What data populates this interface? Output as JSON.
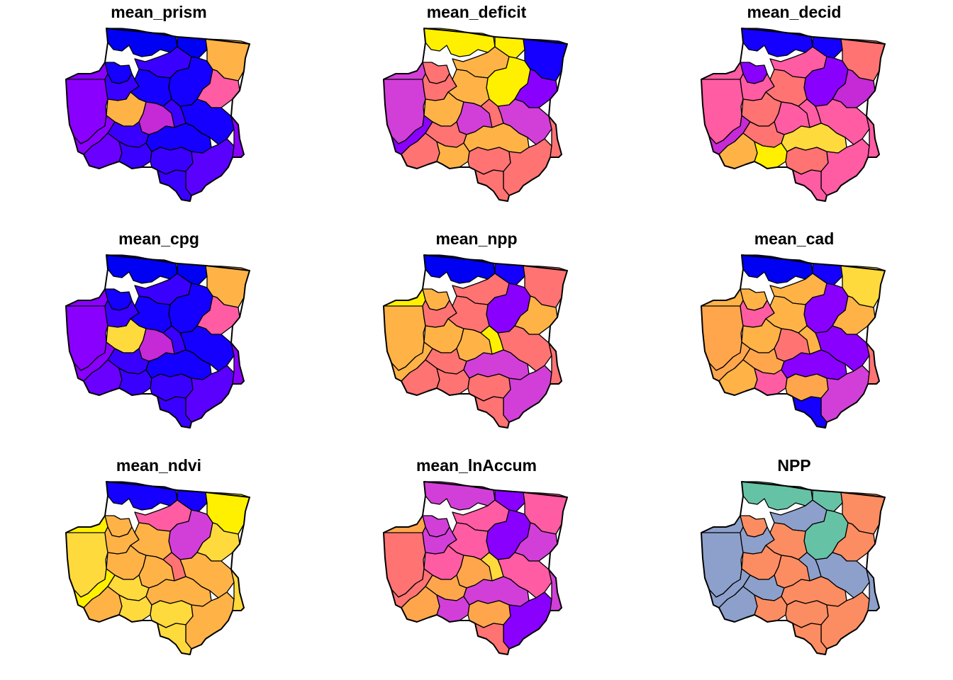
{
  "figure": {
    "panels": [
      {
        "title": "mean_prism",
        "colors": [
          "#8A00FF",
          "#1500FF",
          "#0000F2",
          "#3A00FF",
          "#8A00FF",
          "#0000F2",
          "#3A00FF",
          "#1500FF",
          "#1500FF",
          "#FFB347",
          "#FF5CA3",
          "#1500FF",
          "#FFB347",
          "#8A00FF",
          "#3A00FF",
          "#C629D6",
          "#3A00FF",
          "#6A00FF",
          "#3A00FF",
          "#1500FF",
          "#3A00FF",
          "#5A00FF",
          "#3A00FF",
          "#8A00FF"
        ]
      },
      {
        "title": "mean_deficit",
        "colors": [
          "#D23FD8",
          "#FF7373",
          "#FFF000",
          "#FFB347",
          "#D23FD8",
          "#FFF000",
          "#FF7373",
          "#FFF000",
          "#FFB347",
          "#1500FF",
          "#8A00FF",
          "#D23FD8",
          "#FFB347",
          "#8A00FF",
          "#FF7373",
          "#D23FD8",
          "#FF7373",
          "#FF7373",
          "#FFB347",
          "#FFB347",
          "#FF7373",
          "#FF7373",
          "#FF7373",
          "#FF7373"
        ]
      },
      {
        "title": "mean_decid",
        "colors": [
          "#FF5CA3",
          "#8A00FF",
          "#1500FF",
          "#FF5CA3",
          "#FF5CA3",
          "#1500FF",
          "#FF5CA3",
          "#8A00FF",
          "#FF7373",
          "#FF7373",
          "#C629D6",
          "#FF5CA3",
          "#FF7373",
          "#C629D6",
          "#FF5CA3",
          "#FF5CA3",
          "#FF7373",
          "#FFB347",
          "#FFF000",
          "#FFDA3D",
          "#FF7373",
          "#FF5CA3",
          "#FF5CA3",
          "#FF5CA3"
        ]
      },
      {
        "title": "mean_cpg",
        "colors": [
          "#8A00FF",
          "#1500FF",
          "#0000F2",
          "#3A00FF",
          "#8A00FF",
          "#0000F2",
          "#3A00FF",
          "#1500FF",
          "#1500FF",
          "#FFB347",
          "#FF5CA3",
          "#1500FF",
          "#FFDA3D",
          "#8A00FF",
          "#3A00FF",
          "#C629D6",
          "#3A00FF",
          "#6A00FF",
          "#3A00FF",
          "#1500FF",
          "#3A00FF",
          "#5A00FF",
          "#3A00FF",
          "#8A00FF"
        ]
      },
      {
        "title": "mean_npp",
        "colors": [
          "#FFB347",
          "#FFB347",
          "#0000F2",
          "#FF7373",
          "#FFF000",
          "#1500FF",
          "#FF7373",
          "#8A00FF",
          "#FF7373",
          "#FF7373",
          "#FFB347",
          "#FF7373",
          "#FFB347",
          "#FFB347",
          "#FFF000",
          "#FFB347",
          "#FF7373",
          "#FF7373",
          "#FF7373",
          "#D23FD8",
          "#FF7373",
          "#D23FD8",
          "#FF7373",
          "#FF7373"
        ]
      },
      {
        "title": "mean_cad",
        "colors": [
          "#FFA64D",
          "#FFB347",
          "#0000F2",
          "#FFB347",
          "#FFB347",
          "#1500FF",
          "#FF5CA3",
          "#8A00FF",
          "#FFB347",
          "#FFDA3D",
          "#FFB347",
          "#8A00FF",
          "#FFB347",
          "#FFA64D",
          "#FFB347",
          "#FF7373",
          "#FFA64D",
          "#FFB347",
          "#FF5CA3",
          "#8A00FF",
          "#FFA64D",
          "#D23FD8",
          "#1500FF",
          "#FF7373"
        ]
      },
      {
        "title": "mean_ndvi",
        "colors": [
          "#FFDA3D",
          "#FFB347",
          "#1500FF",
          "#FF5CA3",
          "#FFF000",
          "#1500FF",
          "#FFB347",
          "#D23FD8",
          "#FFB347",
          "#FFF000",
          "#FFDA3D",
          "#FFB347",
          "#FFB347",
          "#FFF000",
          "#FF7373",
          "#FFB347",
          "#FFDA3D",
          "#FFB347",
          "#FFDA3D",
          "#FFB347",
          "#FFDA3D",
          "#FFB347",
          "#FFDA3D",
          "#FFDA3D"
        ]
      },
      {
        "title": "mean_lnAccum",
        "colors": [
          "#FF7373",
          "#D23FD8",
          "#D23FD8",
          "#FF5CA3",
          "#FFA64D",
          "#8A00FF",
          "#D23FD8",
          "#8A00FF",
          "#FF5CA3",
          "#FF5CA3",
          "#D23FD8",
          "#FF5CA3",
          "#FF5CA3",
          "#FF7373",
          "#FFDA3D",
          "#FFA64D",
          "#FFA64D",
          "#FFA64D",
          "#D23FD8",
          "#D23FD8",
          "#FFA64D",
          "#8A00FF",
          "#FF7373",
          "#D23FD8"
        ]
      },
      {
        "title": "NPP",
        "colors": [
          "#8DA0CB",
          "#FC8D62",
          "#66C2A5",
          "#8DA0CB",
          "#8DA0CB",
          "#66C2A5",
          "#8DA0CB",
          "#66C2A5",
          "#FC8D62",
          "#FC8D62",
          "#FC8D62",
          "#8DA0CB",
          "#FC8D62",
          "#8DA0CB",
          "#8DA0CB",
          "#FC8D62",
          "#8DA0CB",
          "#8DA0CB",
          "#FC8D62",
          "#FC8D62",
          "#FC8D62",
          "#FC8D62",
          "#FC8D62",
          "#8DA0CB"
        ]
      }
    ]
  }
}
